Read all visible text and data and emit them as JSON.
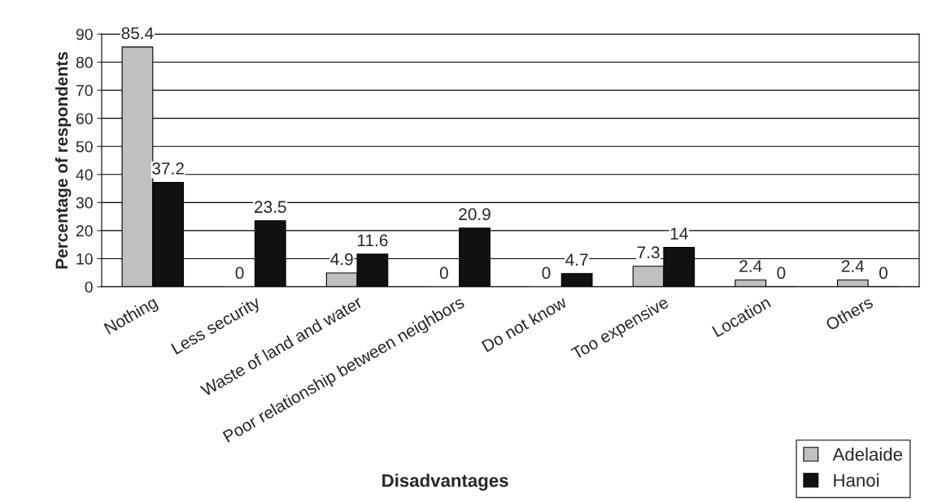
{
  "chart_data": {
    "type": "bar",
    "xlabel": "Disadvantages",
    "ylabel": "Percentage of respondents",
    "categories": [
      "Nothing",
      "Less security",
      "Waste of land and water",
      "Poor relationship between neighbors",
      "Do not know",
      "Too expensive",
      "Location",
      "Others"
    ],
    "series": [
      {
        "name": "Adelaide",
        "color": "#c0c0c0",
        "values": [
          85.4,
          0,
          4.9,
          0,
          0,
          7.3,
          2.4,
          2.4
        ]
      },
      {
        "name": "Hanoi",
        "color": "#111111",
        "values": [
          37.2,
          23.5,
          11.6,
          20.9,
          4.7,
          14,
          0,
          0
        ]
      }
    ],
    "ylim": [
      0,
      90
    ],
    "yticks": [
      0,
      10,
      20,
      30,
      40,
      50,
      60,
      70,
      80,
      90
    ],
    "grid": "y",
    "legend": "bottom right",
    "data_labels": true
  }
}
